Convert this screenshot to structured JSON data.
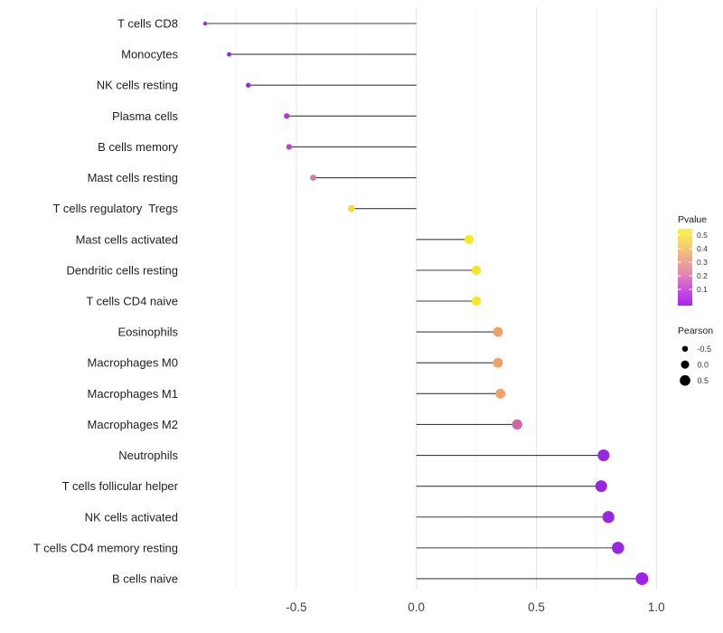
{
  "chart_data": {
    "type": "lollipop",
    "orientation": "horizontal",
    "title": "",
    "xlabel": "",
    "ylabel": "",
    "grid": "major+minor vertical",
    "x_axis": {
      "ticks": [
        {
          "label": "-0.5",
          "value": -0.5
        },
        {
          "label": "0.0",
          "value": 0.0
        },
        {
          "label": "0.5",
          "value": 0.5
        },
        {
          "label": "1.0",
          "value": 1.0
        }
      ],
      "minor_gridlines": [
        -0.75,
        -0.25,
        0.25,
        0.75
      ],
      "range": [
        -0.97,
        1.08
      ]
    },
    "points": [
      {
        "category": "T cells CD8",
        "pearson": -0.88,
        "pvalue_est": 0.02,
        "color": "#9733D1"
      },
      {
        "category": "Monocytes",
        "pearson": -0.78,
        "pvalue_est": 0.02,
        "color": "#9529DB"
      },
      {
        "category": "NK cells resting",
        "pearson": -0.7,
        "pvalue_est": 0.03,
        "color": "#9C2BDC"
      },
      {
        "category": "Plasma cells",
        "pearson": -0.54,
        "pvalue_est": 0.06,
        "color": "#AC38DC"
      },
      {
        "category": "B cells memory",
        "pearson": -0.53,
        "pvalue_est": 0.09,
        "color": "#B748D2"
      },
      {
        "category": "Mast cells resting",
        "pearson": -0.43,
        "pvalue_est": 0.22,
        "color": "#D27FAE"
      },
      {
        "category": "T cells regulatory  Tregs",
        "pearson": -0.27,
        "pvalue_est": 0.45,
        "color": "#F2DC35"
      },
      {
        "category": "Mast cells activated",
        "pearson": 0.22,
        "pvalue_est": 0.5,
        "color": "#F6E926"
      },
      {
        "category": "Dendritic cells resting",
        "pearson": 0.25,
        "pvalue_est": 0.5,
        "color": "#F5E62A"
      },
      {
        "category": "T cells CD4 naive",
        "pearson": 0.25,
        "pvalue_est": 0.5,
        "color": "#F5E62A"
      },
      {
        "category": "Eosinophils",
        "pearson": 0.34,
        "pvalue_est": 0.33,
        "color": "#F0A169"
      },
      {
        "category": "Macrophages M0",
        "pearson": 0.34,
        "pvalue_est": 0.33,
        "color": "#F0A169"
      },
      {
        "category": "Macrophages M1",
        "pearson": 0.35,
        "pvalue_est": 0.33,
        "color": "#F0A169"
      },
      {
        "category": "Macrophages M2",
        "pearson": 0.42,
        "pvalue_est": 0.18,
        "color": "#CF67A4"
      },
      {
        "category": "Neutrophils",
        "pearson": 0.78,
        "pvalue_est": 0.01,
        "color": "#9A27E0"
      },
      {
        "category": "T cells follicular helper",
        "pearson": 0.77,
        "pvalue_est": 0.01,
        "color": "#9A27E0"
      },
      {
        "category": "NK cells activated",
        "pearson": 0.8,
        "pvalue_est": 0.01,
        "color": "#9A27E0"
      },
      {
        "category": "T cells CD4 memory resting",
        "pearson": 0.84,
        "pvalue_est": 0.005,
        "color": "#9A27E0"
      },
      {
        "category": "B cells naive",
        "pearson": 0.94,
        "pvalue_est": 0.001,
        "color": "#A01FEC"
      }
    ],
    "legend_pvalue": {
      "title": "Pvalue",
      "tick_labels": [
        "0.5",
        "0.4",
        "0.3",
        "0.2",
        "0.1"
      ],
      "gradient_stops": [
        {
          "offset": 0.0,
          "color": "#F9F43B"
        },
        {
          "offset": 0.18,
          "color": "#F6D766"
        },
        {
          "offset": 0.38,
          "color": "#EDAC8C"
        },
        {
          "offset": 0.58,
          "color": "#E189B2"
        },
        {
          "offset": 0.78,
          "color": "#CC55DB"
        },
        {
          "offset": 1.0,
          "color": "#A922F2"
        }
      ]
    },
    "legend_pearson": {
      "title": "Pearson",
      "entries": [
        {
          "label": "-0.5",
          "value": -0.5
        },
        {
          "label": "0.0",
          "value": 0.0
        },
        {
          "label": "0.5",
          "value": 0.5
        }
      ],
      "dot_color": "#000000"
    },
    "colors": {
      "background": "#ffffff",
      "stem": "#3d3d3d",
      "grid_major": "#e5e5e5",
      "grid_minor": "#f4f4f4",
      "y_label_text": "#1f1f1f",
      "x_tick_text": "#404040",
      "legend_title_text": "#1a1a1a",
      "legend_tick_text": "#333333"
    }
  }
}
